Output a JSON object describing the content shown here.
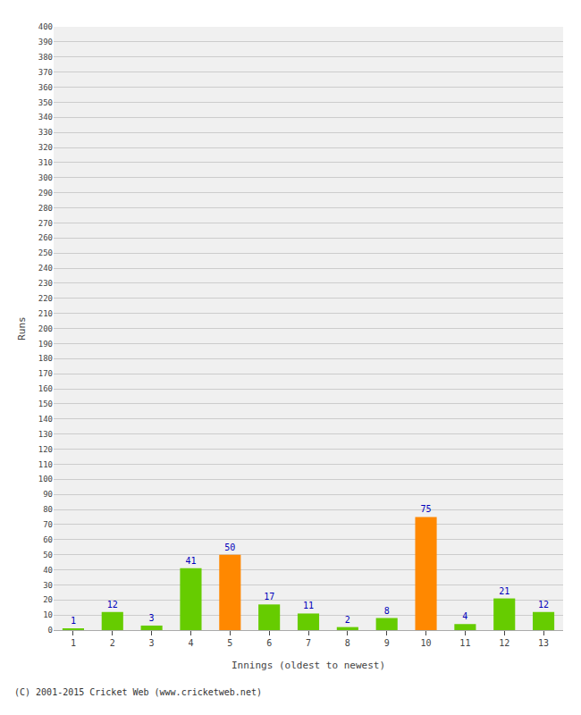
{
  "chart_data": {
    "type": "bar",
    "xlabel": "Innings (oldest to newest)",
    "ylabel": "Runs",
    "categories": [
      "1",
      "2",
      "3",
      "4",
      "5",
      "6",
      "7",
      "8",
      "9",
      "10",
      "11",
      "12",
      "13"
    ],
    "values": [
      1,
      12,
      3,
      41,
      50,
      17,
      11,
      2,
      8,
      75,
      4,
      21,
      12
    ],
    "colors": [
      "#66cc00",
      "#66cc00",
      "#66cc00",
      "#66cc00",
      "#ff8800",
      "#66cc00",
      "#66cc00",
      "#66cc00",
      "#66cc00",
      "#ff8800",
      "#66cc00",
      "#66cc00",
      "#66cc00"
    ],
    "ylim": [
      0,
      400
    ],
    "yticks": [
      0,
      10,
      20,
      30,
      40,
      50,
      60,
      70,
      80,
      90,
      100,
      110,
      120,
      130,
      140,
      150,
      160,
      170,
      180,
      190,
      200,
      210,
      220,
      230,
      240,
      250,
      260,
      270,
      280,
      290,
      300,
      310,
      320,
      330,
      340,
      350,
      360,
      370,
      380,
      390,
      400
    ],
    "grid": true,
    "data_labels": true,
    "annotations": [
      "(C) 2001-2015 Cricket Web (www.cricketweb.net)"
    ]
  }
}
